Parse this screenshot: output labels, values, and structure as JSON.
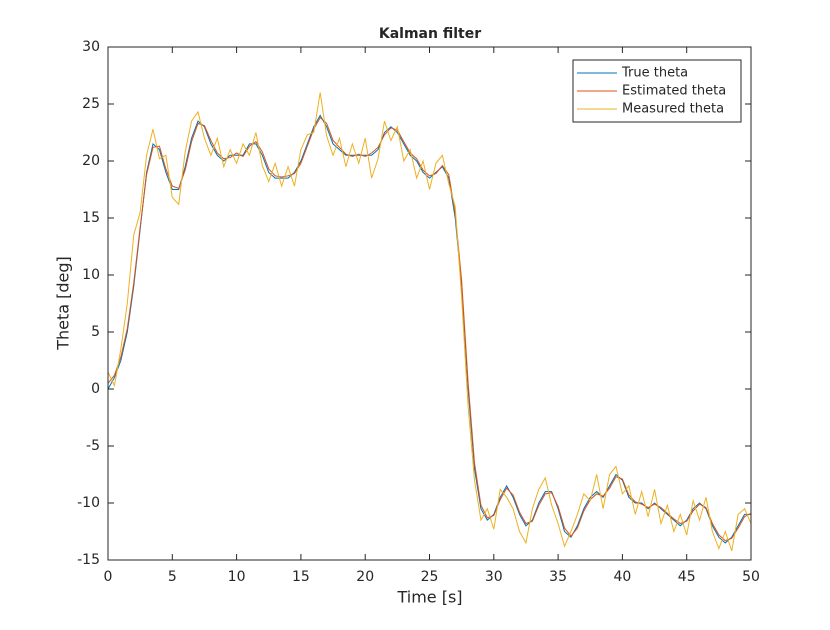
{
  "chart_data": {
    "type": "line",
    "title": "Kalman filter",
    "xlabel": "Time [s]",
    "ylabel": "Theta [deg]",
    "x": [
      0,
      0.5,
      1,
      1.5,
      2,
      2.5,
      3,
      3.5,
      4,
      4.5,
      5,
      5.5,
      6,
      6.5,
      7,
      7.5,
      8,
      8.5,
      9,
      9.5,
      10,
      10.5,
      11,
      11.5,
      12,
      12.5,
      13,
      13.5,
      14,
      14.5,
      15,
      15.5,
      16,
      16.5,
      17,
      17.5,
      18,
      18.5,
      19,
      19.5,
      20,
      20.5,
      21,
      21.5,
      22,
      22.5,
      23,
      23.5,
      24,
      24.5,
      25,
      25.5,
      26,
      26.5,
      27,
      27.5,
      28,
      28.5,
      29,
      29.5,
      30,
      30.5,
      31,
      31.5,
      32,
      32.5,
      33,
      33.5,
      34,
      34.5,
      35,
      35.5,
      36,
      36.5,
      37,
      37.5,
      38,
      38.5,
      39,
      39.5,
      40,
      40.5,
      41,
      41.5,
      42,
      42.5,
      43,
      43.5,
      44,
      44.5,
      45,
      45.5,
      46,
      46.5,
      47,
      47.5,
      48,
      48.5,
      49,
      49.5,
      50
    ],
    "series": [
      {
        "name": "True theta",
        "color": "#0072bd",
        "values": [
          0,
          1,
          2.5,
          5,
          9,
          14,
          19,
          21.5,
          21,
          19,
          17.5,
          17.5,
          19.5,
          22,
          23.5,
          23,
          21.5,
          20.5,
          20,
          20.5,
          20.5,
          20.5,
          21.5,
          21.5,
          20.5,
          19,
          18.5,
          18.5,
          18.5,
          19,
          20,
          21.5,
          23,
          24,
          23,
          21.5,
          21,
          20.5,
          20.5,
          20.5,
          20.5,
          20.5,
          21,
          22.5,
          23,
          22.5,
          21.5,
          20.5,
          20,
          19,
          18.5,
          19,
          19.5,
          18.5,
          15,
          9,
          0,
          -7,
          -10.5,
          -11.5,
          -11,
          -9.5,
          -8.5,
          -9.5,
          -11,
          -12,
          -11.5,
          -10,
          -9,
          -9,
          -10.5,
          -12.5,
          -13,
          -12,
          -10.5,
          -9.5,
          -9,
          -9.5,
          -8.5,
          -7.5,
          -8,
          -9.5,
          -10,
          -10,
          -10.5,
          -10,
          -10.5,
          -11,
          -11.5,
          -12,
          -11.5,
          -10.5,
          -10,
          -10.5,
          -12,
          -13,
          -13.5,
          -13,
          -12,
          -11,
          -11
        ]
      },
      {
        "name": "Estimated theta",
        "color": "#d95319",
        "values": [
          0.5,
          1.2,
          2.8,
          5.3,
          9.3,
          14.2,
          18.8,
          21.2,
          21.3,
          19.3,
          17.8,
          17.6,
          19.2,
          21.7,
          23.3,
          23.1,
          21.8,
          20.7,
          20.2,
          20.3,
          20.7,
          20.4,
          21.3,
          21.7,
          20.8,
          19.3,
          18.7,
          18.6,
          18.7,
          18.9,
          19.8,
          21.3,
          22.8,
          23.8,
          23.3,
          21.8,
          21.2,
          20.6,
          20.4,
          20.6,
          20.4,
          20.7,
          21.2,
          22.3,
          22.9,
          22.7,
          21.7,
          20.7,
          20.2,
          19.2,
          18.7,
          18.9,
          19.6,
          18.8,
          15.4,
          9.5,
          0.6,
          -6.5,
          -10.2,
          -11.3,
          -11.1,
          -9.7,
          -8.7,
          -9.3,
          -10.8,
          -11.8,
          -11.6,
          -10.2,
          -9.2,
          -9.1,
          -10.3,
          -12.2,
          -12.9,
          -12.2,
          -10.7,
          -9.7,
          -9.2,
          -9.4,
          -8.7,
          -7.7,
          -7.9,
          -9.3,
          -9.9,
          -10.1,
          -10.4,
          -10.1,
          -10.4,
          -10.9,
          -11.4,
          -11.8,
          -11.6,
          -10.7,
          -10.1,
          -10.4,
          -11.8,
          -12.8,
          -13.3,
          -13.1,
          -12.2,
          -11.2,
          -10.9
        ]
      },
      {
        "name": "Measured theta",
        "color": "#edb120",
        "values": [
          1.5,
          0.3,
          3.5,
          7.5,
          13.5,
          15.5,
          20.5,
          22.8,
          20.2,
          20.5,
          16.8,
          16.2,
          20.8,
          23.5,
          24.3,
          22,
          20.5,
          22,
          19.5,
          21,
          19.8,
          21.5,
          20.5,
          22.5,
          19.6,
          18.2,
          19.8,
          17.8,
          19.5,
          17.8,
          21,
          22.3,
          22.5,
          26,
          22.2,
          20.5,
          22,
          19.5,
          21.5,
          19.8,
          22,
          18.5,
          20.2,
          23.5,
          21.8,
          23,
          20,
          21,
          18.5,
          20,
          17.5,
          19.8,
          20.5,
          18,
          16,
          8,
          -1.5,
          -8,
          -11.5,
          -10.5,
          -12.3,
          -8.8,
          -9.5,
          -10.5,
          -12.5,
          -13.5,
          -10.5,
          -8.8,
          -7.8,
          -10.2,
          -11.8,
          -13.8,
          -12.5,
          -11,
          -9.2,
          -9.8,
          -7.5,
          -10.5,
          -7.5,
          -6.8,
          -9.2,
          -8.5,
          -11,
          -9,
          -11.2,
          -8.8,
          -11.8,
          -10.2,
          -12.5,
          -11,
          -12.8,
          -9.8,
          -11.5,
          -9.5,
          -12.5,
          -14,
          -12.5,
          -14.2,
          -11,
          -10.5,
          -11.8
        ]
      }
    ],
    "xlim": [
      0,
      50
    ],
    "xticks": [
      0,
      5,
      10,
      15,
      20,
      25,
      30,
      35,
      40,
      45,
      50
    ],
    "ylim": [
      -15,
      30
    ],
    "yticks": [
      -15,
      -10,
      -5,
      0,
      5,
      10,
      15,
      20,
      25,
      30
    ],
    "grid": false,
    "legend": "northeast"
  }
}
